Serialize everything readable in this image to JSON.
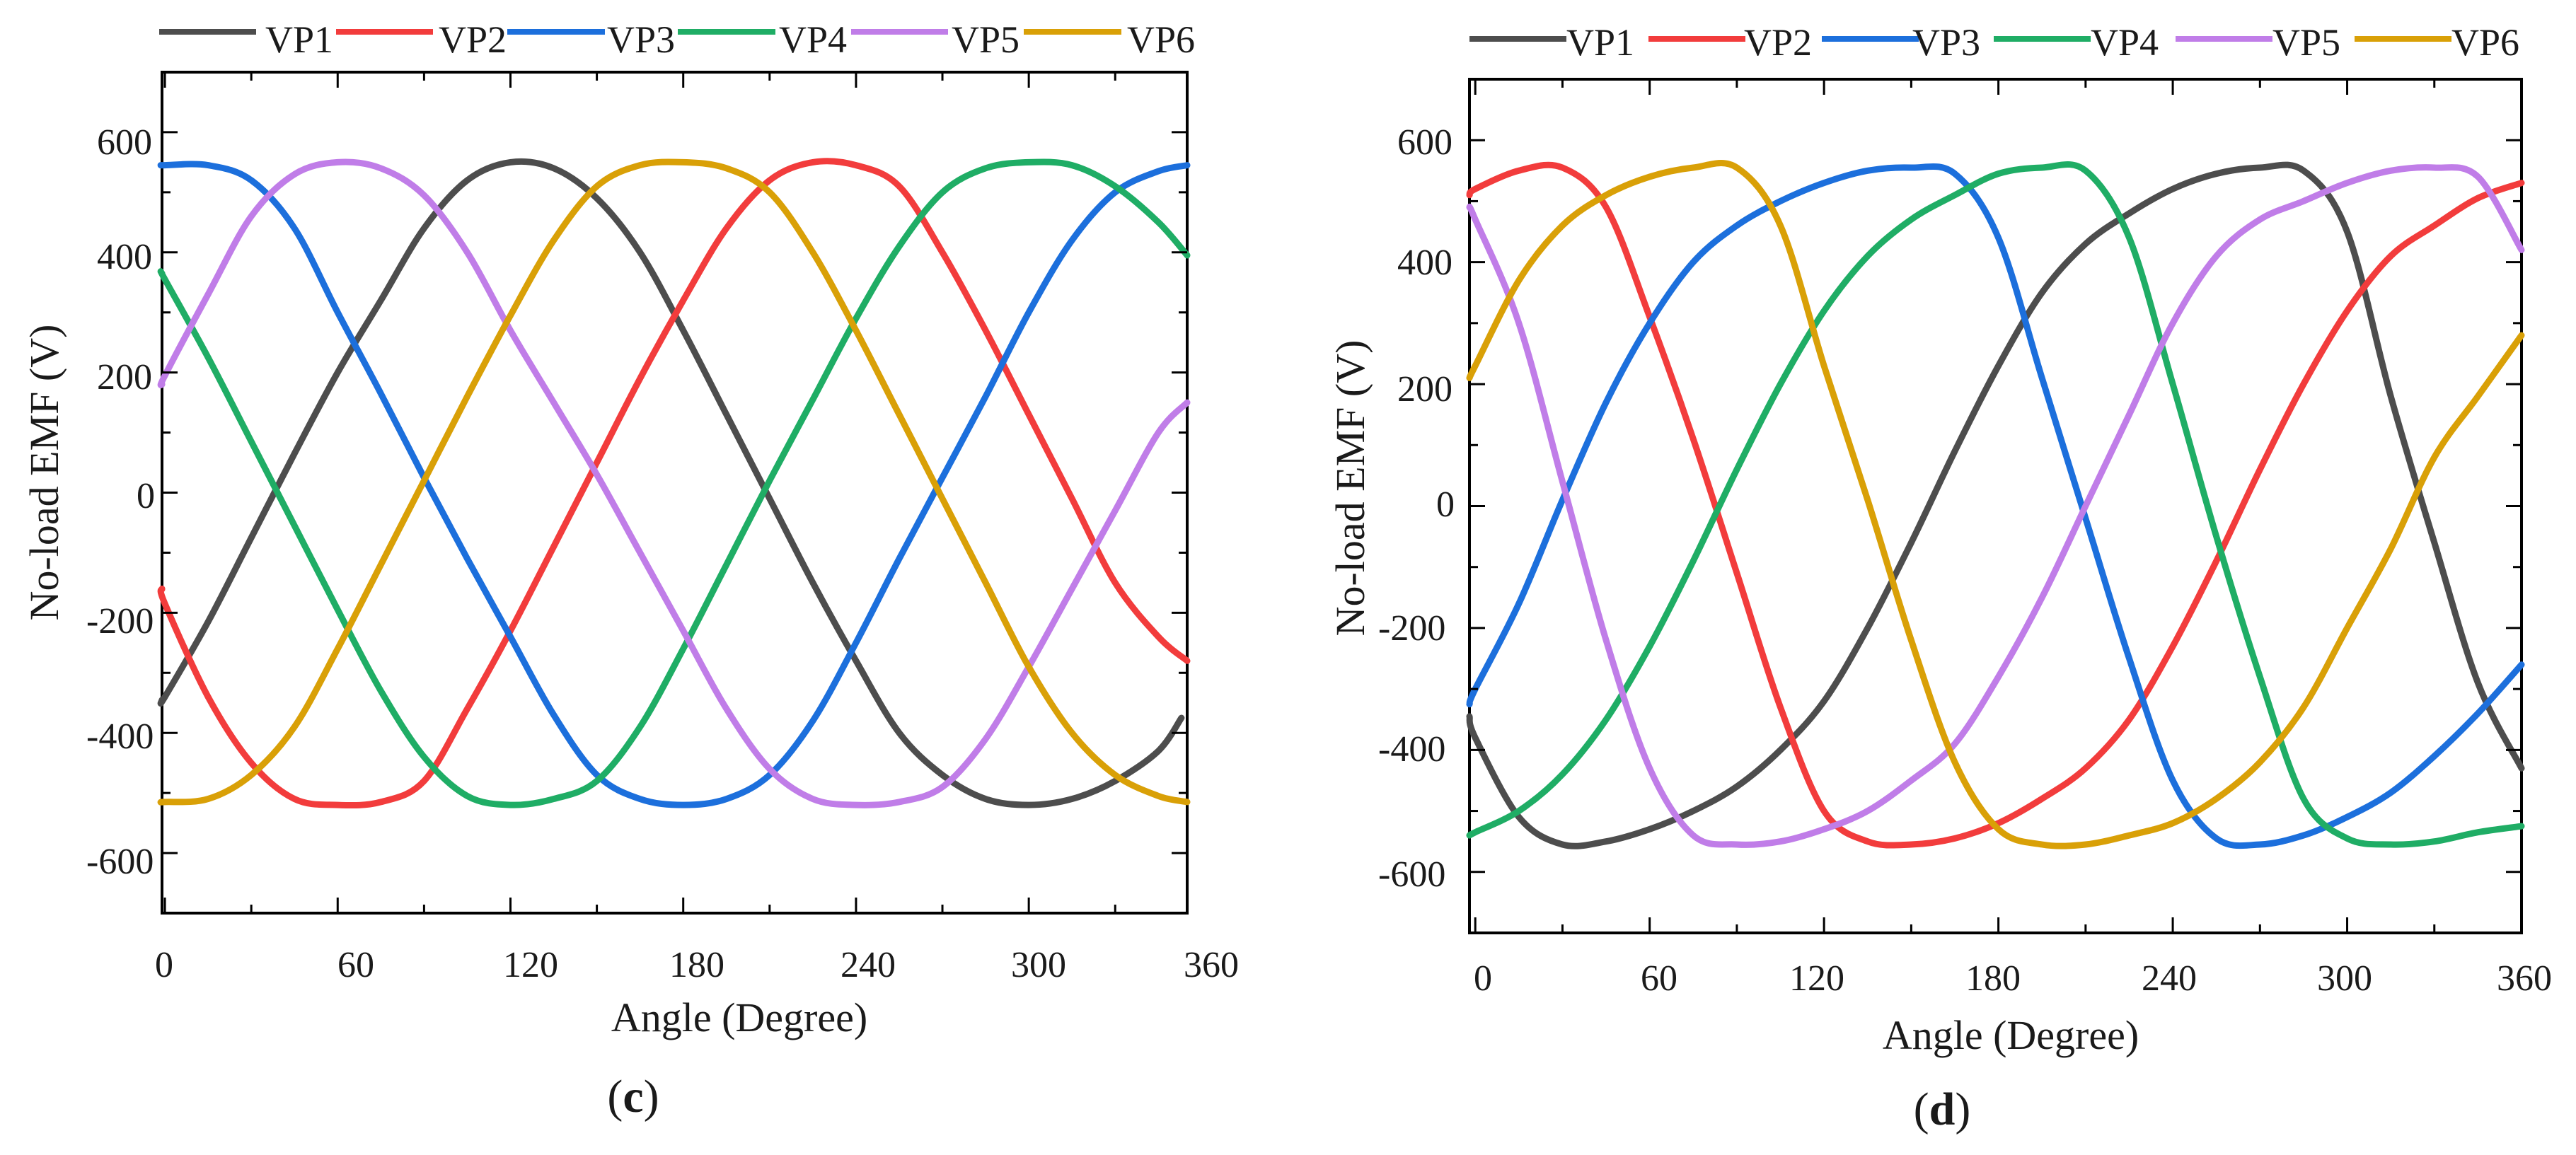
{
  "series_colors": {
    "VP1": "#4d4d4d",
    "VP2": "#f23c3c",
    "VP3": "#1c6fdc",
    "VP4": "#1fad65",
    "VP5": "#c07de8",
    "VP6": "#d9a007"
  },
  "chart_data": [
    {
      "type": "line",
      "panel_label": "(c)",
      "panel_letter": "c",
      "title": "",
      "xlabel": "Angle (Degree)",
      "ylabel": "No-load EMF (V)",
      "xlim": [
        -1,
        355
      ],
      "ylim": [
        -700,
        700
      ],
      "xticks": [
        0,
        60,
        120,
        180,
        240,
        300,
        360
      ],
      "yticks": [
        600,
        400,
        200,
        0,
        -200,
        -400,
        -600
      ],
      "xtick_labels": [
        "0",
        "60",
        "120",
        "180",
        "240",
        "300",
        "360"
      ],
      "ytick_labels": [
        "600",
        "400",
        "200",
        "0",
        "-200",
        "-400",
        "-600"
      ],
      "grid": false,
      "legend": {
        "position": "top",
        "entries": [
          "VP1",
          "VP2",
          "VP3",
          "VP4",
          "VP5",
          "VP6"
        ]
      },
      "series": [
        {
          "name": "VP1",
          "x": [
            -1,
            0,
            15,
            30,
            45,
            60,
            75,
            90,
            105,
            120,
            135,
            150,
            165,
            180,
            195,
            210,
            225,
            240,
            255,
            270,
            285,
            300,
            315,
            330,
            345,
            353
          ],
          "values": [
            -345,
            -340,
            -215,
            -75,
            65,
            200,
            320,
            440,
            520,
            550,
            540,
            490,
            400,
            270,
            130,
            -10,
            -150,
            -280,
            -400,
            -470,
            -510,
            -520,
            -510,
            -480,
            -430,
            -375
          ]
        },
        {
          "name": "VP2",
          "x": [
            -1,
            0,
            15,
            30,
            45,
            60,
            75,
            90,
            105,
            120,
            135,
            150,
            165,
            180,
            195,
            210,
            225,
            240,
            255,
            270,
            285,
            300,
            315,
            330,
            345,
            355
          ],
          "values": [
            -160,
            -185,
            -340,
            -450,
            -510,
            -520,
            -515,
            -480,
            -360,
            -230,
            -90,
            50,
            190,
            320,
            440,
            520,
            550,
            545,
            510,
            400,
            270,
            130,
            -10,
            -150,
            -240,
            -280
          ]
        },
        {
          "name": "VP3",
          "x": [
            -1,
            0,
            15,
            30,
            45,
            60,
            75,
            90,
            105,
            120,
            135,
            150,
            165,
            180,
            195,
            210,
            225,
            240,
            255,
            270,
            285,
            300,
            315,
            330,
            345,
            355
          ],
          "values": [
            545,
            545,
            545,
            520,
            440,
            300,
            165,
            25,
            -110,
            -240,
            -370,
            -470,
            -510,
            -520,
            -510,
            -470,
            -380,
            -250,
            -110,
            25,
            160,
            300,
            420,
            500,
            535,
            545
          ]
        },
        {
          "name": "VP4",
          "x": [
            -1,
            0,
            15,
            30,
            45,
            60,
            75,
            90,
            105,
            120,
            135,
            150,
            165,
            180,
            195,
            210,
            225,
            240,
            255,
            270,
            285,
            300,
            315,
            330,
            345,
            355
          ],
          "values": [
            365,
            355,
            225,
            85,
            -55,
            -195,
            -330,
            -440,
            -505,
            -520,
            -510,
            -480,
            -390,
            -260,
            -120,
            20,
            155,
            290,
            410,
            500,
            540,
            550,
            545,
            510,
            450,
            395
          ]
        },
        {
          "name": "VP5",
          "x": [
            -1,
            0,
            15,
            30,
            45,
            60,
            75,
            90,
            105,
            120,
            135,
            150,
            165,
            180,
            195,
            210,
            225,
            240,
            255,
            270,
            285,
            300,
            315,
            330,
            345,
            355
          ],
          "values": [
            180,
            195,
            330,
            460,
            530,
            550,
            540,
            495,
            400,
            270,
            150,
            30,
            -100,
            -230,
            -360,
            -460,
            -510,
            -520,
            -515,
            -490,
            -410,
            -290,
            -160,
            -30,
            100,
            150
          ]
        },
        {
          "name": "VP6",
          "x": [
            -1,
            0,
            15,
            30,
            45,
            60,
            75,
            90,
            105,
            120,
            135,
            150,
            165,
            180,
            195,
            210,
            225,
            240,
            255,
            270,
            285,
            300,
            315,
            330,
            345,
            355
          ],
          "values": [
            -515,
            -515,
            -510,
            -470,
            -390,
            -260,
            -120,
            20,
            160,
            295,
            420,
            510,
            545,
            550,
            540,
            500,
            400,
            270,
            130,
            -10,
            -150,
            -290,
            -400,
            -470,
            -505,
            -515
          ]
        }
      ]
    },
    {
      "type": "line",
      "panel_label": "(d)",
      "panel_letter": "d",
      "title": "",
      "xlabel": "Angle (Degree)",
      "ylabel": "No-load EMF (V)",
      "xlim": [
        -2,
        360
      ],
      "ylim": [
        -700,
        700
      ],
      "xticks": [
        0,
        60,
        120,
        180,
        240,
        300,
        360
      ],
      "yticks": [
        600,
        400,
        200,
        0,
        -200,
        -400,
        -600
      ],
      "xtick_labels": [
        "0",
        "60",
        "120",
        "180",
        "240",
        "300",
        "360"
      ],
      "ytick_labels": [
        "600",
        "400",
        "200",
        "0",
        "-200",
        "-400",
        "-600"
      ],
      "grid": false,
      "legend": {
        "position": "top",
        "entries": [
          "VP1",
          "VP2",
          "VP3",
          "VP4",
          "VP5",
          "VP6"
        ]
      },
      "series": [
        {
          "name": "VP1",
          "x": [
            -2,
            0,
            15,
            30,
            45,
            60,
            75,
            90,
            105,
            120,
            135,
            150,
            165,
            180,
            195,
            210,
            225,
            240,
            255,
            270,
            285,
            300,
            315,
            330,
            345,
            360
          ],
          "values": [
            -345,
            -380,
            -510,
            -555,
            -550,
            -530,
            -500,
            -460,
            -400,
            -320,
            -200,
            -60,
            90,
            230,
            350,
            430,
            480,
            520,
            545,
            555,
            550,
            450,
            180,
            -60,
            -290,
            -430
          ]
        },
        {
          "name": "VP2",
          "x": [
            -2,
            0,
            15,
            30,
            45,
            60,
            75,
            90,
            105,
            120,
            135,
            150,
            165,
            180,
            195,
            210,
            225,
            240,
            255,
            270,
            285,
            300,
            315,
            330,
            345,
            360
          ],
          "values": [
            510,
            520,
            550,
            555,
            490,
            310,
            110,
            -110,
            -330,
            -500,
            -550,
            -555,
            -545,
            -520,
            -480,
            -430,
            -350,
            -230,
            -90,
            60,
            200,
            320,
            410,
            460,
            505,
            530
          ]
        },
        {
          "name": "VP3",
          "x": [
            -2,
            0,
            15,
            30,
            45,
            60,
            75,
            90,
            105,
            120,
            135,
            150,
            165,
            180,
            195,
            210,
            225,
            240,
            255,
            270,
            285,
            300,
            315,
            330,
            345,
            360
          ],
          "values": [
            -325,
            -300,
            -160,
            10,
            170,
            300,
            400,
            460,
            500,
            530,
            550,
            555,
            545,
            440,
            210,
            -20,
            -250,
            -450,
            -545,
            -555,
            -540,
            -510,
            -470,
            -410,
            -340,
            -260
          ]
        },
        {
          "name": "VP4",
          "x": [
            -2,
            0,
            15,
            30,
            45,
            60,
            75,
            90,
            105,
            120,
            135,
            150,
            165,
            180,
            195,
            210,
            225,
            240,
            255,
            270,
            285,
            300,
            315,
            330,
            345,
            360
          ],
          "values": [
            -540,
            -535,
            -500,
            -440,
            -350,
            -230,
            -90,
            60,
            200,
            320,
            410,
            470,
            510,
            545,
            555,
            550,
            440,
            200,
            -50,
            -280,
            -480,
            -545,
            -555,
            -550,
            -535,
            -525
          ]
        },
        {
          "name": "VP5",
          "x": [
            -2,
            0,
            15,
            30,
            45,
            60,
            75,
            90,
            105,
            120,
            135,
            150,
            165,
            180,
            195,
            210,
            225,
            240,
            255,
            270,
            285,
            300,
            315,
            330,
            345,
            360
          ],
          "values": [
            490,
            470,
            300,
            40,
            -220,
            -430,
            -540,
            -555,
            -550,
            -530,
            -500,
            -450,
            -390,
            -280,
            -150,
            0,
            150,
            300,
            410,
            470,
            500,
            530,
            550,
            555,
            540,
            420
          ]
        },
        {
          "name": "VP6",
          "x": [
            -2,
            0,
            15,
            30,
            45,
            60,
            75,
            90,
            105,
            120,
            135,
            150,
            165,
            180,
            195,
            210,
            225,
            240,
            255,
            270,
            285,
            300,
            315,
            330,
            345,
            360
          ],
          "values": [
            210,
            230,
            370,
            460,
            510,
            540,
            555,
            555,
            460,
            230,
            10,
            -220,
            -420,
            -530,
            -555,
            -555,
            -540,
            -520,
            -480,
            -420,
            -330,
            -200,
            -70,
            80,
            180,
            280
          ]
        }
      ]
    }
  ]
}
